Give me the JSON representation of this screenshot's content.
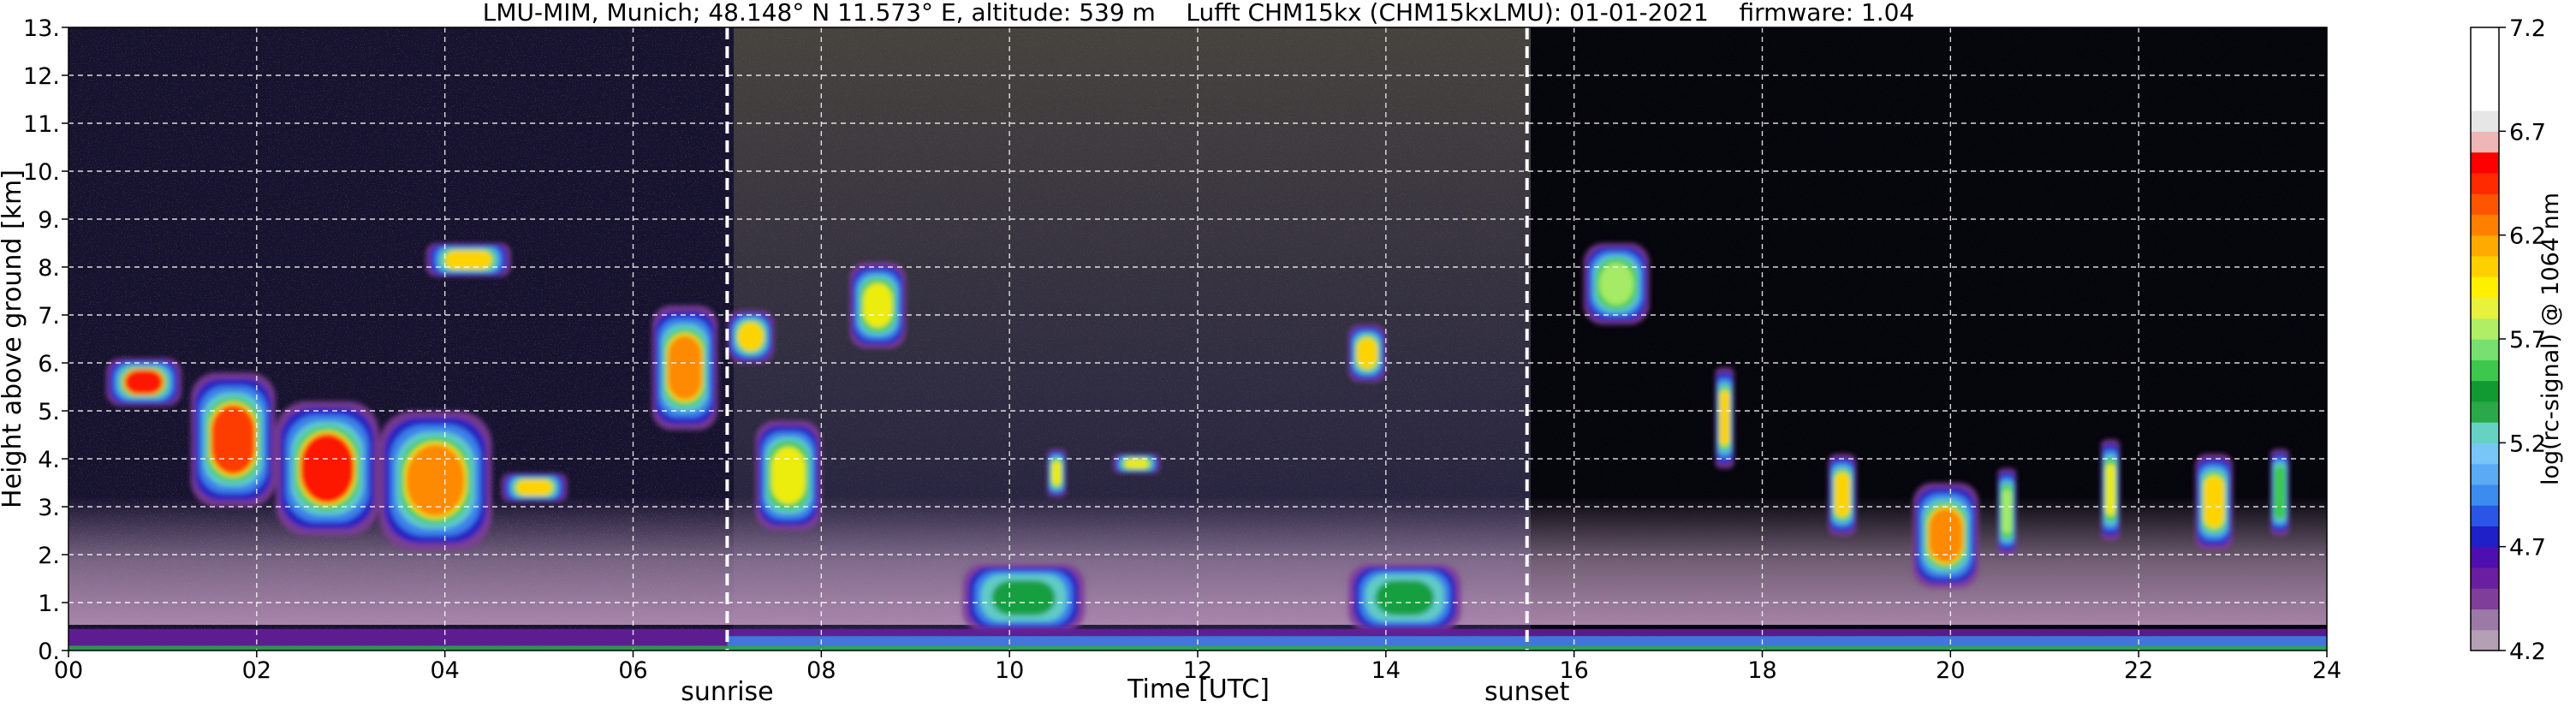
{
  "chart_data": {
    "type": "heatmap",
    "title": "LMU-MIM, Munich; 48.148° N 11.573° E, altitude: 539 m    Lufft CHM15kx (CHM15kxLMU): 01-01-2021    firmware: 1.04",
    "xlabel": "Time [UTC]",
    "ylabel": "Height above ground [km]",
    "xlim": [
      0,
      24
    ],
    "ylim": [
      0,
      13
    ],
    "x_ticks": [
      "00",
      "02",
      "04",
      "06",
      "08",
      "10",
      "12",
      "14",
      "16",
      "18",
      "20",
      "22",
      "24"
    ],
    "y_ticks": [
      "0.",
      "1.",
      "2.",
      "3.",
      "4.",
      "5.",
      "6.",
      "7.",
      "8.",
      "9.",
      "10.",
      "11.",
      "12.",
      "13."
    ],
    "grid": true,
    "events": [
      {
        "label": "sunrise",
        "time": 7.0
      },
      {
        "label": "sunset",
        "time": 15.5
      }
    ],
    "colorbar": {
      "label": "log(rc-signal) @ 1064 nm",
      "range": [
        4.2,
        7.2
      ],
      "ticks": [
        "4.2",
        "4.7",
        "5.2",
        "5.7",
        "6.2",
        "6.7",
        "7.2"
      ],
      "colors": [
        "#b4a0b4",
        "#9c7aa6",
        "#7e3e99",
        "#6a1fa0",
        "#4f0fb0",
        "#2020c8",
        "#2a55e6",
        "#3c8cf0",
        "#5aaaf5",
        "#78c6f5",
        "#66d2c2",
        "#2aa84a",
        "#129a32",
        "#3dc84d",
        "#78e070",
        "#b0ee66",
        "#e6f23c",
        "#fff000",
        "#ffd000",
        "#ffaa00",
        "#ff8000",
        "#ff5500",
        "#ff2a00",
        "#ff0000",
        "#f0b6b6",
        "#e6e6e6",
        "#ffffff",
        "#ffffff",
        "#ffffff",
        "#ffffff"
      ]
    },
    "features": [
      {
        "name": "cloud-layer",
        "t0": 0.4,
        "t1": 1.2,
        "h0": 5.1,
        "h1": 6.1,
        "intensity": 6.6
      },
      {
        "name": "cloud-layer",
        "t0": 1.3,
        "t1": 2.2,
        "h0": 3.0,
        "h1": 5.8,
        "intensity": 6.4
      },
      {
        "name": "cloud-layer",
        "t0": 2.2,
        "t1": 3.3,
        "h0": 2.4,
        "h1": 5.2,
        "intensity": 6.6
      },
      {
        "name": "cloud-layer",
        "t0": 3.3,
        "t1": 4.5,
        "h0": 2.1,
        "h1": 5.0,
        "intensity": 6.3
      },
      {
        "name": "cloud-layer",
        "t0": 4.6,
        "t1": 5.3,
        "h0": 3.1,
        "h1": 3.7,
        "intensity": 6.0
      },
      {
        "name": "cloud-layer",
        "t0": 3.8,
        "t1": 4.7,
        "h0": 7.8,
        "h1": 8.5,
        "intensity": 6.0
      },
      {
        "name": "cloud-layer",
        "t0": 6.2,
        "t1": 6.9,
        "h0": 4.6,
        "h1": 7.2,
        "intensity": 6.3
      },
      {
        "name": "cloud-layer",
        "t0": 7.0,
        "t1": 7.5,
        "h0": 6.0,
        "h1": 7.1,
        "intensity": 6.0
      },
      {
        "name": "cloud-layer",
        "t0": 7.3,
        "t1": 8.0,
        "h0": 2.5,
        "h1": 4.8,
        "intensity": 5.9
      },
      {
        "name": "cloud-layer",
        "t0": 8.3,
        "t1": 8.9,
        "h0": 6.3,
        "h1": 8.1,
        "intensity": 5.9
      },
      {
        "name": "cloud-layer",
        "t0": 10.4,
        "t1": 10.6,
        "h0": 3.2,
        "h1": 4.2,
        "intensity": 5.9
      },
      {
        "name": "cloud-layer",
        "t0": 11.1,
        "t1": 11.6,
        "h0": 3.7,
        "h1": 4.1,
        "intensity": 5.9
      },
      {
        "name": "cloud-layer",
        "t0": 13.6,
        "t1": 14.0,
        "h0": 5.6,
        "h1": 6.8,
        "intensity": 6.0
      },
      {
        "name": "cloud-layer",
        "t0": 16.1,
        "t1": 16.8,
        "h0": 6.8,
        "h1": 8.5,
        "intensity": 5.8
      },
      {
        "name": "cloud-layer",
        "t0": 17.5,
        "t1": 17.7,
        "h0": 3.8,
        "h1": 5.9,
        "intensity": 6.1
      },
      {
        "name": "cloud-layer",
        "t0": 18.7,
        "t1": 19.0,
        "h0": 2.4,
        "h1": 4.1,
        "intensity": 6.1
      },
      {
        "name": "cloud-layer",
        "t0": 19.6,
        "t1": 20.3,
        "h0": 1.3,
        "h1": 3.5,
        "intensity": 6.3
      },
      {
        "name": "cloud-layer",
        "t0": 20.5,
        "t1": 20.7,
        "h0": 2.0,
        "h1": 3.8,
        "intensity": 5.7
      },
      {
        "name": "cloud-layer",
        "t0": 21.6,
        "t1": 21.8,
        "h0": 2.3,
        "h1": 4.4,
        "intensity": 5.9
      },
      {
        "name": "cloud-layer",
        "t0": 22.6,
        "t1": 23.0,
        "h0": 2.1,
        "h1": 4.1,
        "intensity": 6.1
      },
      {
        "name": "cloud-layer",
        "t0": 23.4,
        "t1": 23.6,
        "h0": 2.4,
        "h1": 4.2,
        "intensity": 5.6
      },
      {
        "name": "boundary-layer",
        "t0": 9.5,
        "t1": 10.8,
        "h0": 0.4,
        "h1": 1.8,
        "intensity": 5.5
      },
      {
        "name": "boundary-layer",
        "t0": 13.6,
        "t1": 14.8,
        "h0": 0.4,
        "h1": 1.8,
        "intensity": 5.5
      }
    ]
  }
}
